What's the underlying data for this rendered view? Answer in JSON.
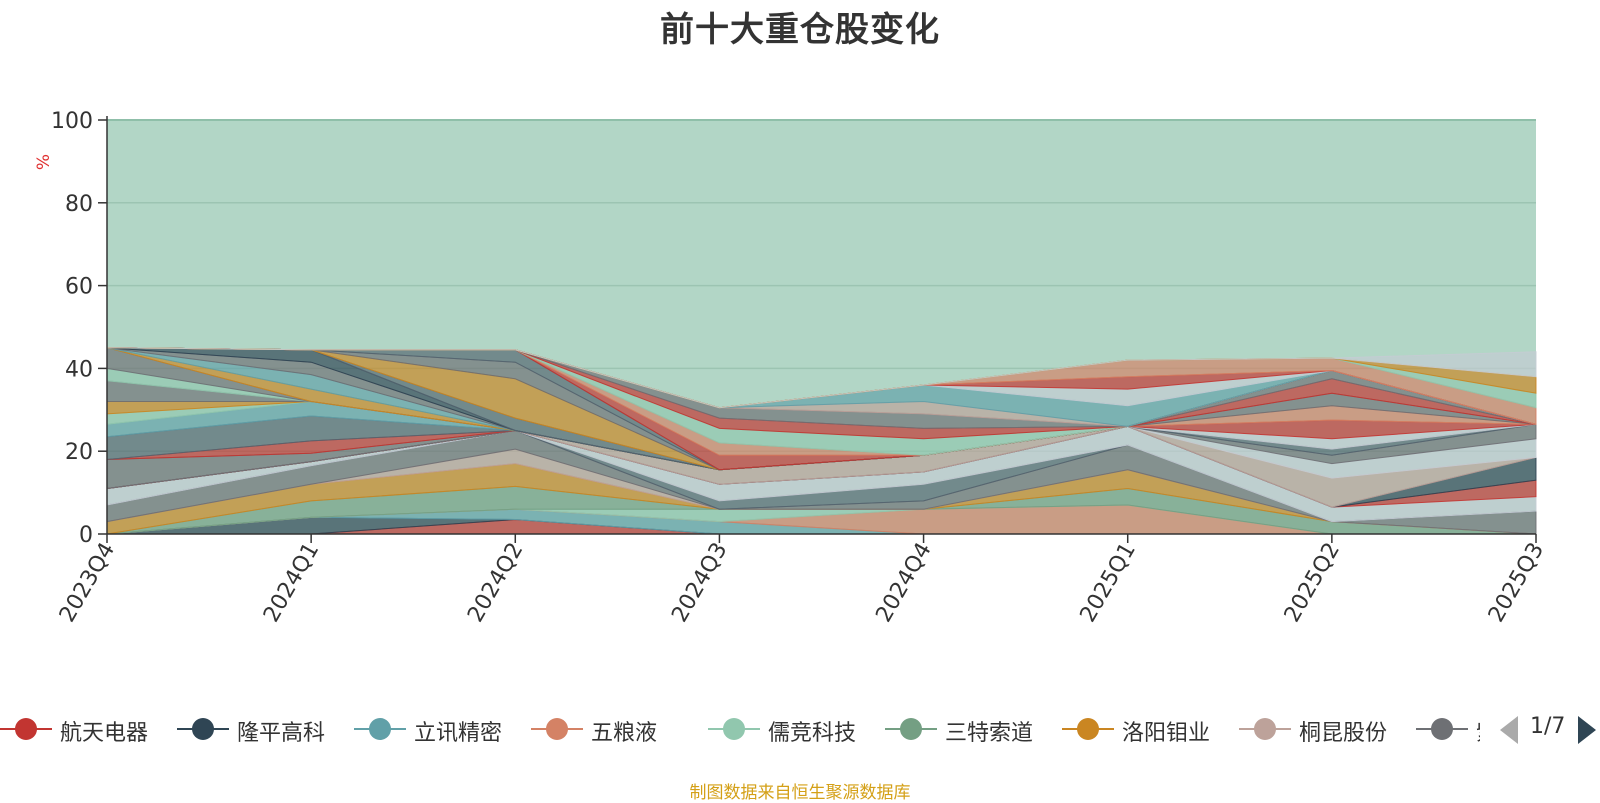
{
  "title": "前十大重仓股变化",
  "source_note": "制图数据来自恒生聚源数据库",
  "pager": {
    "text": "1/7"
  },
  "chart_data": {
    "type": "area",
    "stacked": true,
    "ylabel": "%",
    "ylim": [
      0,
      100
    ],
    "yticks": [
      "0",
      "20",
      "40",
      "60",
      "80",
      "100"
    ],
    "categories": [
      "2023Q4",
      "2024Q1",
      "2024Q2",
      "2024Q3",
      "2024Q4",
      "2025Q1",
      "2025Q2",
      "2025Q3"
    ],
    "background_series_color": "#b2d6c6",
    "legend_visible": [
      "航天电器",
      "隆平高科",
      "立讯精密",
      "五粮液",
      "儒竞科技",
      "三特索道",
      "洛阳钼业",
      "桐昆股份",
      "紫金矿业"
    ],
    "series": [
      {
        "name": "航天电器",
        "color": "#c23531",
        "values": [
          0,
          0,
          3.5,
          0,
          0,
          0,
          0,
          0
        ]
      },
      {
        "name": "隆平高科",
        "color": "#2f4554",
        "values": [
          0,
          4,
          0,
          0,
          0,
          0,
          0,
          0
        ]
      },
      {
        "name": "立讯精密",
        "color": "#61a0a8",
        "values": [
          0,
          0,
          2.5,
          3,
          0,
          0,
          0,
          0
        ]
      },
      {
        "name": "五粮液",
        "color": "#d48265",
        "values": [
          0,
          0,
          0,
          0,
          6,
          7,
          0,
          0
        ]
      },
      {
        "name": "儒竞科技",
        "color": "#91c7ae",
        "values": [
          0,
          0,
          0,
          3,
          0,
          0,
          0,
          0
        ]
      },
      {
        "name": "三特索道",
        "color": "#749f83",
        "values": [
          0,
          4,
          5.5,
          0,
          0,
          4,
          3,
          0
        ]
      },
      {
        "name": "洛阳钼业",
        "color": "#ca8622",
        "values": [
          3,
          4,
          5.5,
          0,
          0,
          4.5,
          0,
          0
        ]
      },
      {
        "name": "桐昆股份",
        "color": "#bda29a",
        "values": [
          0,
          0,
          3.5,
          0,
          0,
          0,
          0,
          0
        ]
      },
      {
        "name": "紫金矿业",
        "color": "#6e7074",
        "values": [
          4,
          4.5,
          4.5,
          0,
          2,
          6,
          0,
          5.5
        ]
      },
      {
        "color": "#546570",
        "values": [
          0,
          0,
          0,
          2,
          4,
          0,
          0,
          0
        ]
      },
      {
        "color": "#c4ccd3",
        "values": [
          4,
          1,
          0,
          4,
          3,
          4.5,
          3.5,
          3.5
        ]
      },
      {
        "color": "#c23531",
        "values": [
          0,
          0,
          0,
          0,
          0,
          0,
          0,
          4
        ]
      },
      {
        "color": "#2f4554",
        "values": [
          0,
          0,
          0,
          0,
          0,
          0,
          0,
          5.5
        ]
      },
      {
        "color": "#bda29a",
        "values": [
          0,
          0,
          0,
          3.5,
          4,
          0,
          7,
          0
        ]
      },
      {
        "color": "#c4ccd3",
        "values": [
          0,
          0,
          0,
          0,
          0,
          0,
          3.5,
          4.5
        ]
      },
      {
        "color": "#6e7074",
        "values": [
          0,
          0,
          0,
          0,
          0,
          0,
          2,
          3.5
        ]
      },
      {
        "color": "#546570",
        "values": [
          0,
          0,
          0,
          0,
          0,
          0,
          1.5,
          0
        ]
      },
      {
        "color": "#c4ccd3",
        "values": [
          0,
          0,
          0,
          0,
          0,
          0,
          2.5,
          0
        ]
      },
      {
        "color": "#c23531",
        "values": [
          0,
          0,
          0,
          0,
          0,
          0,
          4.5,
          0
        ]
      },
      {
        "color": "#d48265",
        "values": [
          0,
          0,
          0,
          0,
          0,
          0,
          3.5,
          0
        ]
      },
      {
        "color": "#6e7074",
        "values": [
          0,
          0,
          0,
          0,
          0,
          0,
          3,
          0
        ]
      },
      {
        "color": "#c23531",
        "values": [
          0,
          0,
          0,
          0,
          0,
          0,
          3.5,
          0
        ]
      },
      {
        "color": "#6e7074",
        "values": [
          0,
          0,
          0,
          0,
          0,
          0,
          2,
          0
        ]
      },
      {
        "color": "#6e7074",
        "values": [
          7,
          2,
          0,
          0,
          0,
          0,
          0,
          0
        ]
      },
      {
        "color": "#c23531",
        "values": [
          0,
          3,
          0,
          0,
          0,
          0,
          0,
          0
        ]
      },
      {
        "color": "#546570",
        "values": [
          5.5,
          6,
          0,
          0,
          0,
          0,
          0,
          0
        ]
      },
      {
        "color": "#61a0a8",
        "values": [
          3,
          3.5,
          0,
          0,
          0,
          0,
          0,
          0
        ]
      },
      {
        "color": "#91c7ae",
        "values": [
          2.5,
          0,
          0,
          0,
          0,
          0,
          0,
          0
        ]
      },
      {
        "color": "#ca8622",
        "values": [
          3,
          0,
          0,
          0,
          0,
          0,
          0,
          0
        ]
      },
      {
        "color": "#6e7074",
        "values": [
          5,
          0,
          0,
          0,
          0,
          0,
          0,
          0
        ]
      },
      {
        "color": "#91c7ae",
        "values": [
          3,
          0,
          0,
          0,
          0,
          0,
          0,
          0
        ]
      },
      {
        "color": "#6e7074",
        "values": [
          5,
          0,
          0,
          0,
          0,
          0,
          0,
          0
        ]
      },
      {
        "color": "#ca8622",
        "values": [
          0,
          3,
          0,
          0,
          0,
          0,
          0,
          0
        ]
      },
      {
        "color": "#61a0a8",
        "values": [
          0,
          3.5,
          0,
          0,
          0,
          0,
          0,
          0
        ]
      },
      {
        "color": "#6e7074",
        "values": [
          0,
          3,
          0,
          0,
          0,
          0,
          0,
          0
        ]
      },
      {
        "color": "#2f4554",
        "values": [
          0,
          3,
          0,
          0,
          0,
          0,
          0,
          0
        ]
      },
      {
        "color": "#546570",
        "values": [
          0,
          0,
          3,
          0,
          0,
          0,
          0,
          0
        ]
      },
      {
        "color": "#ca8622",
        "values": [
          0,
          0,
          9.5,
          0,
          0,
          0,
          0,
          0
        ]
      },
      {
        "color": "#6e7074",
        "values": [
          0,
          0,
          4,
          0,
          0,
          0,
          0,
          0
        ]
      },
      {
        "color": "#546570",
        "values": [
          0,
          0,
          3,
          0,
          0,
          0,
          0,
          0
        ]
      },
      {
        "color": "#c23531",
        "values": [
          0,
          0,
          0,
          3.5,
          0,
          0,
          0,
          0
        ]
      },
      {
        "color": "#d48265",
        "values": [
          0,
          0,
          0,
          3,
          0,
          0,
          0,
          0
        ]
      },
      {
        "color": "#91c7ae",
        "values": [
          0,
          0,
          0,
          3.5,
          4,
          0,
          0,
          0
        ]
      },
      {
        "color": "#c23531",
        "values": [
          0,
          0,
          0,
          2.5,
          2.5,
          0,
          0,
          0
        ]
      },
      {
        "color": "#6e7074",
        "values": [
          0,
          0,
          0,
          2.5,
          3.5,
          0,
          0,
          0
        ]
      },
      {
        "color": "#bda29a",
        "values": [
          0,
          0,
          0,
          0,
          3,
          0,
          0,
          0
        ]
      },
      {
        "color": "#61a0a8",
        "values": [
          0,
          0,
          0,
          0,
          4,
          5,
          0,
          0
        ]
      },
      {
        "color": "#c4ccd3",
        "values": [
          0,
          0,
          0,
          0,
          0,
          4,
          0,
          0
        ]
      },
      {
        "color": "#c23531",
        "values": [
          0,
          0,
          0,
          0,
          0,
          3,
          0,
          0
        ]
      },
      {
        "color": "#d48265",
        "values": [
          0,
          0,
          0,
          0,
          0,
          4,
          3,
          4
        ]
      },
      {
        "color": "#91c7ae",
        "values": [
          0,
          0,
          0,
          0,
          0,
          0,
          0,
          3.5
        ]
      },
      {
        "color": "#ca8622",
        "values": [
          0,
          0,
          0,
          0,
          0,
          0,
          0,
          4
        ]
      },
      {
        "color": "#c4ccd3",
        "values": [
          0,
          0,
          0,
          0,
          0,
          0,
          0,
          6
        ]
      }
    ]
  }
}
